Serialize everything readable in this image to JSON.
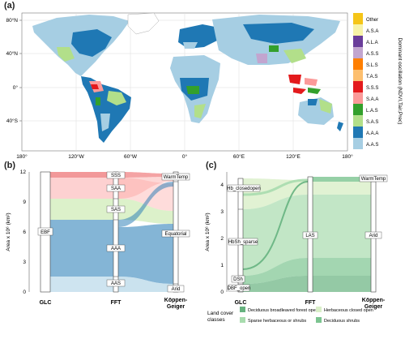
{
  "panels": {
    "a": {
      "label": "(a)",
      "lat_ticks": [
        "80°N",
        "40°N",
        "0°",
        "40°S"
      ],
      "lon_ticks": [
        "180°",
        "120°W",
        "60°W",
        "0°",
        "60°E",
        "120°E",
        "180°"
      ],
      "legend_title": "Dominant oscillation (NDVI,Tair,Prec)",
      "legend": [
        {
          "label": "Other",
          "color": "#f5c518"
        },
        {
          "label": "A.S.A",
          "color": "#f7f3a8"
        },
        {
          "label": "A.L.A",
          "color": "#6a3d9a"
        },
        {
          "label": "A.S.S",
          "color": "#c2a5cf"
        },
        {
          "label": "S.L.S",
          "color": "#ff7f00"
        },
        {
          "label": "T.A.S",
          "color": "#fdbf6f"
        },
        {
          "label": "S.S.S",
          "color": "#e31a1c"
        },
        {
          "label": "S.A.A",
          "color": "#fb9a99"
        },
        {
          "label": "L.A.S",
          "color": "#33a02c"
        },
        {
          "label": "S.A.S",
          "color": "#b2df8a"
        },
        {
          "label": "A.A.A",
          "color": "#1f78b4"
        },
        {
          "label": "A.A.S",
          "color": "#a6cee3"
        }
      ]
    },
    "b": {
      "label": "(b)",
      "ylabel": "Area x 10⁶ (km²)",
      "xticks": [
        "GLC",
        "FFT",
        "Köppen-\nGeiger"
      ],
      "yticks": [
        "0",
        "3",
        "6",
        "9",
        "12"
      ],
      "glc_nodes": [
        "EBF"
      ],
      "fft_nodes": [
        "SSS",
        "SAA",
        "SAS",
        "AAA",
        "AAS"
      ],
      "kg_nodes": [
        "WarmTemp",
        "Equatorial",
        "Arid"
      ]
    },
    "c": {
      "label": "(c)",
      "ylabel": "Area x 10⁶ (km²)",
      "xticks": [
        "GLC",
        "FFT",
        "Köppen-\nGeiger"
      ],
      "yticks": [
        "0",
        "1",
        "2",
        "3",
        "4"
      ],
      "glc_nodes": [
        "Hb_closedopen",
        "HbSh_sparse",
        "DSh",
        "DBF_open"
      ],
      "fft_nodes": [
        "LAS"
      ],
      "kg_nodes": [
        "WarmTemp",
        "Arid"
      ],
      "legend_title": "Land cover\nclasses",
      "legend": [
        {
          "label": "Deciduous broadleaved forest open",
          "color": "#66b27f"
        },
        {
          "label": "Herbaceous closed open",
          "color": "#d9efc8"
        },
        {
          "label": "Sparse herbaceous or shrubs",
          "color": "#a8dcae"
        },
        {
          "label": "Deciduous shrubs",
          "color": "#7cc490"
        }
      ]
    }
  }
}
